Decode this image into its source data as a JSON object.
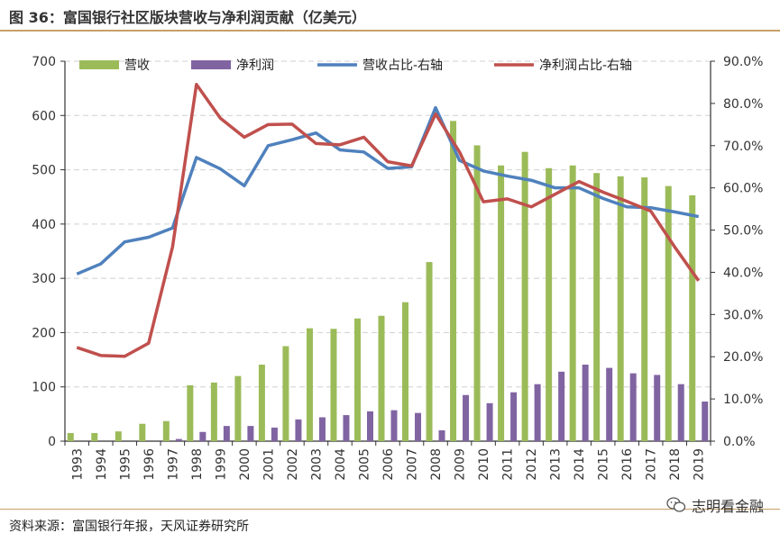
{
  "header": {
    "title": "图 36：富国银行社区版块营收与净利润贡献（亿美元）"
  },
  "footer": {
    "source": "资料来源：富国银行年报，天风证券研究所",
    "watermark": "志明看金融"
  },
  "chart_data": {
    "type": "bar+line",
    "categories": [
      "1993",
      "1994",
      "1995",
      "1996",
      "1997",
      "1998",
      "1999",
      "2000",
      "2001",
      "2002",
      "2003",
      "2004",
      "2005",
      "2006",
      "2007",
      "2008",
      "2009",
      "2010",
      "2011",
      "2012",
      "2013",
      "2014",
      "2015",
      "2016",
      "2017",
      "2018",
      "2019"
    ],
    "series": [
      {
        "name": "营收",
        "type": "bar",
        "axis": "left",
        "color": "#9bbb59",
        "values": [
          15,
          15,
          18,
          32,
          37,
          103,
          108,
          120,
          141,
          175,
          208,
          207,
          226,
          231,
          256,
          330,
          590,
          545,
          508,
          533,
          503,
          508,
          494,
          488,
          486,
          470,
          453
        ]
      },
      {
        "name": "净利润",
        "type": "bar",
        "axis": "left",
        "color": "#8064a2",
        "values": [
          0,
          0,
          0,
          0,
          4,
          17,
          28,
          28,
          25,
          40,
          44,
          48,
          55,
          57,
          52,
          20,
          85,
          70,
          90,
          105,
          128,
          141,
          135,
          125,
          122,
          105,
          73
        ]
      },
      {
        "name": "营收占比-右轴",
        "type": "line",
        "axis": "right",
        "color": "#4f81bd",
        "values": [
          0.396,
          0.42,
          0.472,
          0.483,
          0.505,
          0.672,
          0.645,
          0.605,
          0.7,
          0.714,
          0.73,
          0.69,
          0.685,
          0.646,
          0.65,
          0.79,
          0.665,
          0.64,
          0.628,
          0.618,
          0.6,
          0.6,
          0.575,
          0.555,
          0.553,
          0.543,
          0.532
        ]
      },
      {
        "name": "净利润占比-右轴",
        "type": "line",
        "axis": "right",
        "color": "#c0504d",
        "values": [
          0.222,
          0.203,
          0.201,
          0.232,
          0.46,
          0.845,
          0.765,
          0.72,
          0.75,
          0.751,
          0.705,
          0.702,
          0.72,
          0.662,
          0.652,
          0.775,
          0.685,
          0.567,
          0.574,
          0.555,
          0.585,
          0.615,
          0.59,
          0.568,
          0.545,
          0.46,
          0.38
        ]
      }
    ],
    "left_axis": {
      "min": 0,
      "max": 700,
      "ticks": [
        "0",
        "100",
        "200",
        "300",
        "400",
        "500",
        "600",
        "700"
      ]
    },
    "right_axis": {
      "min": 0,
      "max": 0.9,
      "ticks": [
        "0.0%",
        "10.0%",
        "20.0%",
        "30.0%",
        "40.0%",
        "50.0%",
        "60.0%",
        "70.0%",
        "80.0%",
        "90.0%"
      ]
    },
    "grid": "horizontal-dashed",
    "legend": "top"
  }
}
